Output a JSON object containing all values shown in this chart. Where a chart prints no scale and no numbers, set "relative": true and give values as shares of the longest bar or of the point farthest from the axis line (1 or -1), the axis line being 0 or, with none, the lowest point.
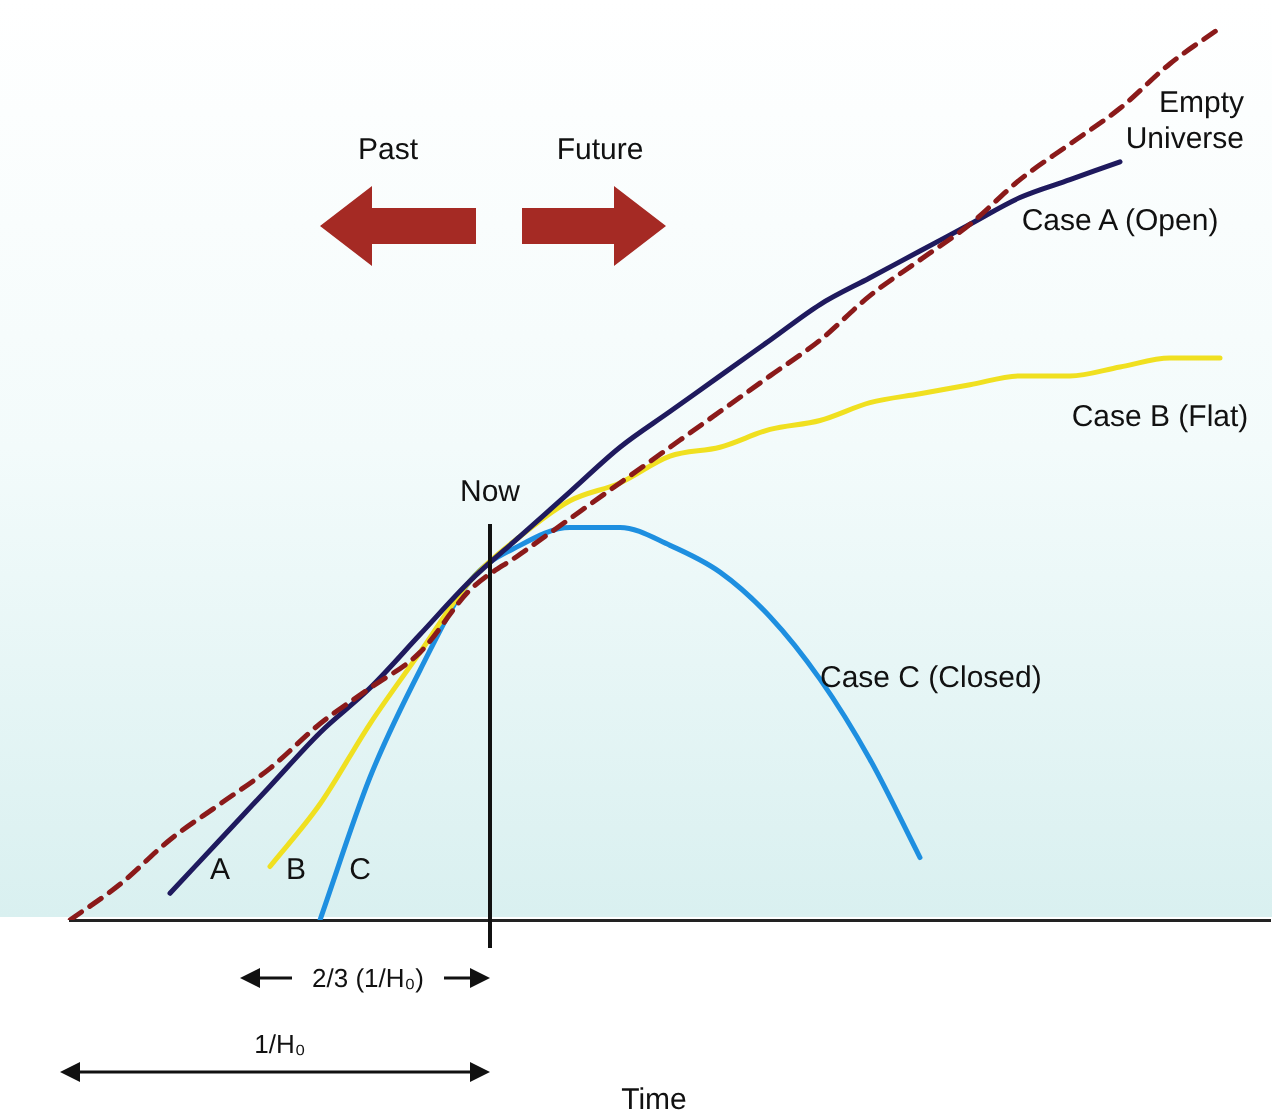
{
  "chart_data": {
    "type": "line",
    "relative": true,
    "legend": false,
    "grid": false,
    "marker": "none",
    "categories": [
      null,
      null,
      null,
      null,
      null,
      null,
      null,
      null,
      null,
      null,
      null,
      null,
      null,
      null,
      null,
      null,
      null,
      null,
      null,
      null,
      null,
      null,
      null,
      null,
      null
    ],
    "series": [
      {
        "name": "Empty Universe",
        "color": "#8b1a1a",
        "line_style": "dashed",
        "values": [
          0,
          0.04,
          0.09,
          0.13,
          0.17,
          0.22,
          0.26,
          0.3,
          0.37,
          0.41,
          0.45,
          0.49,
          0.53,
          0.57,
          0.61,
          0.65,
          0.7,
          0.74,
          0.78,
          0.83,
          0.87,
          0.91,
          0.96,
          1.0,
          null
        ]
      },
      {
        "name": "Case A (Open)",
        "color": "#1f1a5e",
        "line_style": "solid",
        "values": [
          null,
          null,
          0.03,
          0.09,
          0.15,
          0.21,
          0.26,
          0.32,
          0.38,
          0.43,
          0.48,
          0.53,
          0.57,
          0.61,
          0.65,
          0.69,
          0.72,
          0.75,
          0.78,
          0.81,
          0.83,
          0.85,
          null,
          null,
          null
        ]
      },
      {
        "name": "Case B (Flat)",
        "color": "#f0e020",
        "line_style": "solid",
        "values": [
          null,
          null,
          null,
          null,
          0.06,
          0.13,
          0.22,
          0.3,
          0.38,
          0.43,
          0.47,
          0.49,
          0.52,
          0.53,
          0.55,
          0.56,
          0.58,
          0.59,
          0.6,
          0.61,
          0.61,
          0.62,
          0.63,
          0.63,
          null
        ]
      },
      {
        "name": "Case C (Closed)",
        "color": "#1e8fe0",
        "line_style": "solid",
        "values": [
          null,
          null,
          null,
          null,
          null,
          0,
          0.16,
          0.28,
          0.38,
          0.42,
          0.44,
          0.44,
          0.42,
          0.39,
          0.34,
          0.27,
          0.18,
          0.07,
          null,
          null,
          null,
          null,
          null,
          null,
          null
        ]
      }
    ],
    "annotations": [
      "Past",
      "Future",
      "Now",
      "A",
      "B",
      "C",
      "2/3 (1/H₀)",
      "1/H₀",
      "Time"
    ]
  }
}
